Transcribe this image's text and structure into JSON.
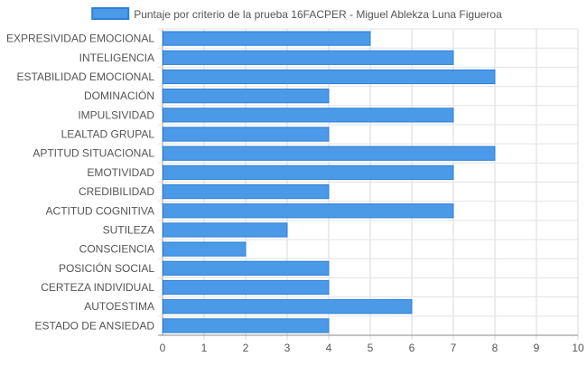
{
  "chart_data": {
    "type": "bar",
    "orientation": "horizontal",
    "categories": [
      "EXPRESIVIDAD EMOCIONAL",
      "INTELIGENCIA",
      "ESTABILIDAD EMOCIONAL",
      "DOMINACIÓN",
      "IMPULSIVIDAD",
      "LEALTAD GRUPAL",
      "APTITUD SITUACIONAL",
      "EMOTIVIDAD",
      "CREDIBILIDAD",
      "ACTITUD COGNITIVA",
      "SUTILEZA",
      "CONSCIENCIA",
      "POSICIÓN SOCIAL",
      "CERTEZA INDIVIDUAL",
      "AUTOESTIMA",
      "ESTADO DE ANSIEDAD"
    ],
    "series": [
      {
        "name": "Puntaje por criterio de la prueba 16FACPER - Miguel Ablekza Luna Figueroa",
        "values": [
          5,
          7,
          8,
          4,
          7,
          4,
          8,
          7,
          4,
          7,
          3,
          2,
          4,
          4,
          6,
          4
        ],
        "color": "#4a9ae8",
        "border_color": "#2f7fd6"
      }
    ],
    "xlim": [
      0,
      10
    ],
    "x_ticks": [
      0,
      1,
      2,
      3,
      4,
      5,
      6,
      7,
      8,
      9,
      10
    ],
    "grid": true,
    "legend_position": "top",
    "title": "",
    "xlabel": "",
    "ylabel": ""
  }
}
